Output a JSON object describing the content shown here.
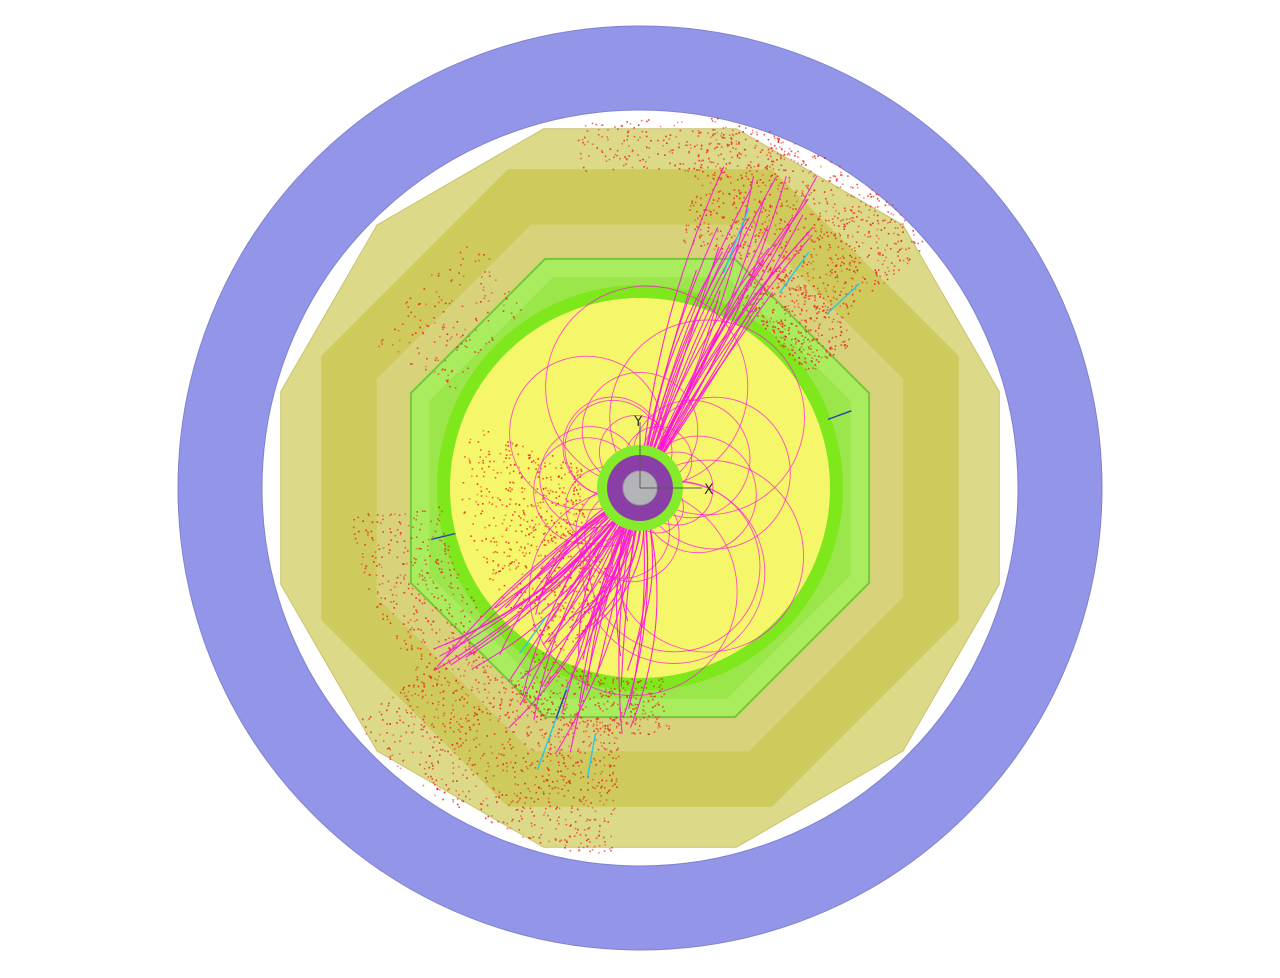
{
  "view": {
    "colors": {
      "background": "#ffffff",
      "muon_ring": "#9396e8",
      "hcal_outer": "#dcd988",
      "hcal_inner": "#cfca5c",
      "ecal_outer": "#a9ec5e",
      "ecal_inner": "#7ee81c",
      "tracker": "#f6f66a",
      "vertex_outer": "#84ec2a",
      "vertex_inner": "#8a3fa6",
      "beampipe": "#b4b4b8",
      "track": "#ff14dc",
      "calo_hit": "#e8261c",
      "neutral": "#28c8e6",
      "muon_track": "#2a3fb4"
    }
  },
  "axes": {
    "x_label": "X",
    "y_label": "Y",
    "color": "#5a5a5a"
  },
  "detector": {
    "layers": [
      {
        "name": "muon-ring",
        "icon": "ring"
      },
      {
        "name": "hcal-outer",
        "icon": "dodecagon"
      },
      {
        "name": "hcal-inner",
        "icon": "octagon"
      },
      {
        "name": "ecal-octagon",
        "icon": "octagon"
      },
      {
        "name": "tracker-volume",
        "icon": "circle"
      },
      {
        "name": "vertex-detector",
        "icon": "ring"
      },
      {
        "name": "beam-pipe",
        "icon": "circle"
      }
    ]
  }
}
